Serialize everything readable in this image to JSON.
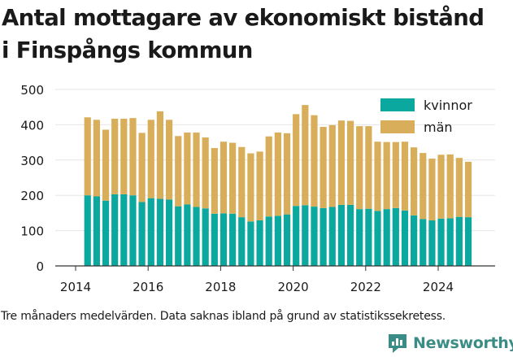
{
  "title": "Antal mottagare av ekonomiskt bistånd i Finspångs kommun",
  "note": "Tre månaders medelvärden. Data saknas ibland på grund av statistikssekretess.",
  "brand": "Newsworthy",
  "colors": {
    "kvinnor": "#0aa89e",
    "man": "#d9ae5a",
    "axis": "#333333",
    "grid": "#e6e6e6"
  },
  "chart_data": {
    "type": "bar",
    "stacked": true,
    "title": "Antal mottagare av ekonomiskt bistånd i Finspångs kommun",
    "xlabel": "",
    "ylabel": "",
    "ylim": [
      0,
      500
    ],
    "yticks": [
      0,
      100,
      200,
      300,
      400,
      500
    ],
    "xlim": [
      2014,
      2025.6
    ],
    "xticks": [
      2014,
      2016,
      2018,
      2020,
      2022,
      2024
    ],
    "grid": true,
    "legend_position": "top-right",
    "x": [
      2014.33,
      2014.58,
      2014.83,
      2015.08,
      2015.33,
      2015.58,
      2015.83,
      2016.08,
      2016.33,
      2016.58,
      2016.83,
      2017.08,
      2017.33,
      2017.58,
      2017.83,
      2018.08,
      2018.33,
      2018.58,
      2018.83,
      2019.08,
      2019.33,
      2019.58,
      2019.83,
      2020.08,
      2020.33,
      2020.58,
      2020.83,
      2021.08,
      2021.33,
      2021.58,
      2021.83,
      2022.08,
      2022.33,
      2022.58,
      2022.83,
      2023.08,
      2023.33,
      2023.58,
      2023.83,
      2024.08,
      2024.33,
      2024.58,
      2024.83
    ],
    "series": [
      {
        "name": "kvinnor",
        "values": [
          200,
          197,
          185,
          203,
          203,
          200,
          181,
          192,
          190,
          188,
          169,
          174,
          167,
          163,
          148,
          149,
          148,
          138,
          126,
          129,
          140,
          142,
          146,
          170,
          172,
          168,
          164,
          167,
          173,
          173,
          161,
          162,
          156,
          161,
          164,
          157,
          143,
          133,
          129,
          134,
          135,
          139,
          138
        ]
      },
      {
        "name": "män",
        "values": [
          221,
          217,
          201,
          214,
          214,
          219,
          196,
          222,
          248,
          226,
          199,
          204,
          211,
          201,
          186,
          203,
          201,
          199,
          193,
          195,
          227,
          236,
          230,
          260,
          284,
          259,
          230,
          232,
          239,
          238,
          235,
          234,
          196,
          190,
          187,
          195,
          193,
          187,
          175,
          181,
          181,
          167,
          157
        ]
      }
    ]
  }
}
